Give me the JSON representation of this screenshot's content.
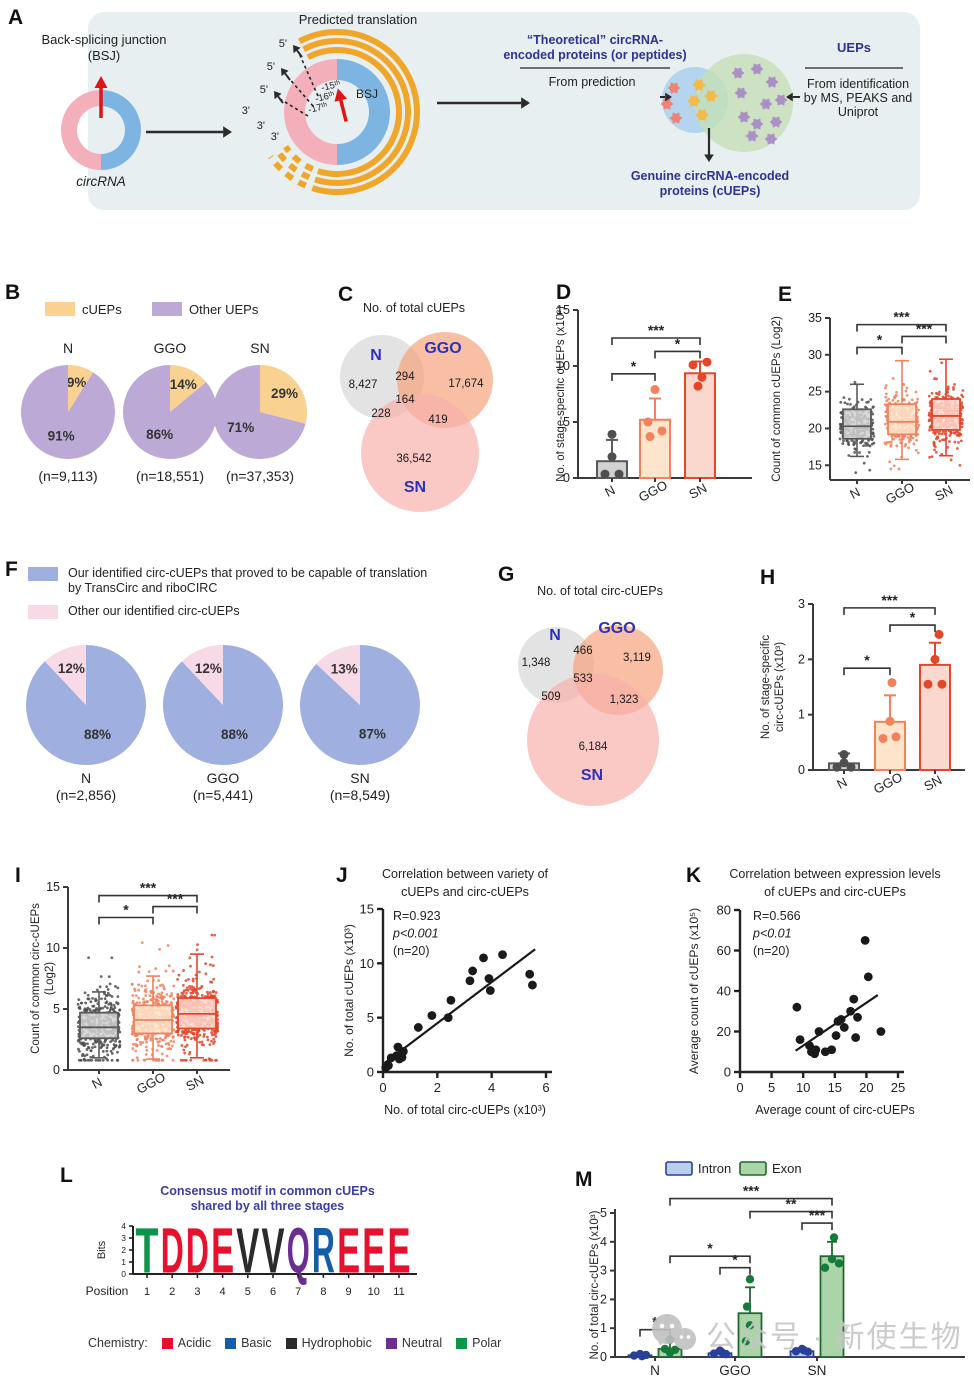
{
  "colors": {
    "stage_fill": [
      "#d2d2d2",
      "#fde4cb",
      "#fbd8cd"
    ],
    "stage_stroke": [
      "#595959",
      "#f2815c",
      "#e2472a"
    ],
    "stage_dot": [
      "#4f4f4f",
      "#f2815c",
      "#e2472a"
    ],
    "venn": [
      "#d6d6d6",
      "#f5a17b",
      "#f8b0ab"
    ],
    "blue_text": "#2d3293",
    "panelA_bg": "#e8eff1",
    "ring_pink": "#f3b0bb",
    "ring_blue": "#7eb4e2",
    "arc_orange": "#f0a62a",
    "venn_blue_circle": "#aed2ec",
    "venn_green_circle": "#c4deb6",
    "blob_red": "#ee8276",
    "blob_yellow": "#f2b94b",
    "blob_purple": "#ab90c6",
    "intron_fill": "#b9d0ec",
    "intron_stroke": "#2a3f97",
    "exon_fill": "#abd4a8",
    "exon_stroke": "#21672f",
    "exon_dot": "#157a3a"
  },
  "panelA": {
    "label": "A",
    "bsj_caption": [
      "Back-splicing junction",
      "(BSJ)"
    ],
    "circrna": "circRNA",
    "predicted": "Predicted translation",
    "five": "5'",
    "three": "3'",
    "orfs": [
      "-15ᵗʰ",
      "-16ᵗʰ",
      "-17ᵗʰ"
    ],
    "bsj": "BSJ",
    "theoretical": [
      "“Theoretical” circRNA-",
      "encoded  proteins (or peptides)"
    ],
    "from_prediction": "From prediction",
    "genuine": [
      "Genuine circRNA-encoded",
      "proteins (cUEPs)"
    ],
    "ueps": "UEPs",
    "from_identification": [
      "From identification",
      "by MS, PEAKS and",
      "Uniprot"
    ]
  },
  "panelB": {
    "label": "B"
  },
  "panelC": {
    "label": "C"
  },
  "panelD": {
    "label": "D"
  },
  "panelE": {
    "label": "E"
  },
  "panelF": {
    "label": "F",
    "legend1_line1": "Our identified circ-cUEPs that proved to be capable of translation",
    "legend1_line2": "by TransCirc and riboCIRC",
    "legend2": "Other our identified circ-cUEPs"
  },
  "panelG": {
    "label": "G"
  },
  "panelH": {
    "label": "H"
  },
  "panelI": {
    "label": "I"
  },
  "panelJ": {
    "label": "J"
  },
  "panelK": {
    "label": "K"
  },
  "panelL": {
    "label": "L",
    "title": [
      "Consensus motif in common cUEPs",
      "shared by all three stages"
    ],
    "bits": "Bits",
    "position": "Position",
    "chemistry_label": "Chemistry:"
  },
  "panelM": {
    "label": "M"
  },
  "watermark": {
    "text": "公众号 · 新使生物"
  },
  "chart_data": [
    {
      "panel": "B",
      "type": "pie",
      "legend": [
        "cUEPs",
        "Other UEPs"
      ],
      "slice_colors": [
        "#f9d292",
        "#bda9d6"
      ],
      "pies": [
        {
          "label": "N",
          "values": [
            9,
            91
          ],
          "value_labels": [
            "9%",
            "91%"
          ],
          "n": "(n=9,113)"
        },
        {
          "label": "GGO",
          "values": [
            14,
            86
          ],
          "value_labels": [
            "14%",
            "86%"
          ],
          "n": "(n=18,551)"
        },
        {
          "label": "SN",
          "values": [
            29,
            71
          ],
          "value_labels": [
            "29%",
            "71%"
          ],
          "n": "(n=37,353)"
        }
      ]
    },
    {
      "panel": "C",
      "type": "venn3",
      "title": "No. of total cUEPs",
      "sets": [
        {
          "name": "N",
          "count": "8,427"
        },
        {
          "name": "GGO",
          "count": "17,674"
        },
        {
          "name": "SN",
          "count": "36,542"
        }
      ],
      "overlaps": {
        "N_GGO": "294",
        "N_SN": "228",
        "GGO_SN": "419",
        "center": "164"
      }
    },
    {
      "panel": "D",
      "type": "bar",
      "ylabel": "No. of stage-specific cUEPs (x10³)",
      "ylim": [
        0,
        15
      ],
      "yticks": [
        0,
        5,
        10,
        15
      ],
      "categories": [
        "N",
        "GGO",
        "SN"
      ],
      "values": [
        1.5,
        5.2,
        9.35
      ],
      "err_top": [
        3.4,
        7.1,
        10.4
      ],
      "points": [
        [
          [
            0,
            3.9
          ],
          [
            0,
            1.9
          ],
          [
            -7,
            0.35
          ],
          [
            7,
            0.35
          ]
        ],
        [
          [
            0,
            7.9
          ],
          [
            -7,
            5.0
          ],
          [
            7,
            4.2
          ],
          [
            -5,
            3.7
          ]
        ],
        [
          [
            -7,
            10.1
          ],
          [
            7,
            10.35
          ],
          [
            2,
            9.0
          ],
          [
            -2,
            8.2
          ]
        ]
      ],
      "sig": [
        {
          "a": 0,
          "b": 1,
          "y": 9.3,
          "t": "*"
        },
        {
          "a": 1,
          "b": 2,
          "y": 11.3,
          "t": "*"
        },
        {
          "a": 0,
          "b": 2,
          "y": 12.5,
          "t": "***"
        }
      ]
    },
    {
      "panel": "E",
      "type": "box",
      "ylabel": "Count of common cUEPs (Log2)",
      "ylim": [
        13,
        35
      ],
      "yticks": [
        15,
        20,
        25,
        30,
        35
      ],
      "categories": [
        "N",
        "GGO",
        "SN"
      ],
      "boxes": [
        {
          "lo": 16.2,
          "q1": 18.6,
          "med": 20.3,
          "q3": 22.6,
          "hi": 26.0
        },
        {
          "lo": 15.8,
          "q1": 19.2,
          "med": 20.9,
          "q3": 23.3,
          "hi": 29.2
        },
        {
          "lo": 16.3,
          "q1": 19.8,
          "med": 21.7,
          "q3": 24.0,
          "hi": 29.4
        }
      ],
      "jitter": {
        "n": [
          230,
          280,
          320
        ],
        "seed": 11,
        "core_sd": 1.6,
        "tail_sd": 3.0,
        "clamp": [
          [
            14.0,
            27.6
          ],
          [
            14.5,
            30.3
          ],
          [
            15.0,
            30.6
          ]
        ]
      },
      "sig": [
        {
          "a": 0,
          "b": 1,
          "y": 31.0,
          "t": "*"
        },
        {
          "a": 1,
          "b": 2,
          "y": 32.5,
          "t": "***"
        },
        {
          "a": 0,
          "b": 2,
          "y": 34.1,
          "t": "***"
        }
      ]
    },
    {
      "panel": "F",
      "type": "pie",
      "legend": [
        "Our identified circ-cUEPs that proved to be capable of translation by TransCirc and riboCIRC",
        "Other our identified circ-cUEPs"
      ],
      "slice_colors": [
        "#9fb0e0",
        "#f8d9e6"
      ],
      "pies": [
        {
          "label": "N",
          "values": [
            88,
            12
          ],
          "value_labels": [
            "88%",
            "12%"
          ],
          "n": "(n=2,856)"
        },
        {
          "label": "GGO",
          "values": [
            88,
            12
          ],
          "value_labels": [
            "88%",
            "12%"
          ],
          "n": "(n=5,441)"
        },
        {
          "label": "SN",
          "values": [
            87,
            13
          ],
          "value_labels": [
            "87%",
            "13%"
          ],
          "n": "(n=8,549)"
        }
      ]
    },
    {
      "panel": "G",
      "type": "venn3",
      "title": "No. of total circ-cUEPs",
      "sets": [
        {
          "name": "N",
          "count": "1,348"
        },
        {
          "name": "GGO",
          "count": "3,119"
        },
        {
          "name": "SN",
          "count": "6,184"
        }
      ],
      "overlaps": {
        "N_GGO": "466",
        "N_SN": "509",
        "GGO_SN": "1,323",
        "center": "533"
      }
    },
    {
      "panel": "H",
      "type": "bar",
      "ylabel_lines": [
        "No. of stage-specific",
        "circ-cUEPs (x10³)"
      ],
      "ylim": [
        0,
        3
      ],
      "yticks": [
        0,
        1,
        2,
        3
      ],
      "categories": [
        "N",
        "GGO",
        "SN"
      ],
      "values": [
        0.12,
        0.87,
        1.9
      ],
      "err_top": [
        0.3,
        1.35,
        2.3
      ],
      "points": [
        [
          [
            0,
            0.28
          ],
          [
            0,
            0.13
          ],
          [
            -7,
            0.05
          ],
          [
            7,
            0.05
          ]
        ],
        [
          [
            2,
            1.58
          ],
          [
            0,
            0.88
          ],
          [
            -7,
            0.57
          ],
          [
            6,
            0.6
          ]
        ],
        [
          [
            4,
            2.45
          ],
          [
            0,
            2.0
          ],
          [
            -7,
            1.55
          ],
          [
            7,
            1.55
          ]
        ]
      ],
      "sig": [
        {
          "a": 0,
          "b": 1,
          "y": 1.84,
          "t": "*"
        },
        {
          "a": 1,
          "b": 2,
          "y": 2.62,
          "t": "*"
        },
        {
          "a": 0,
          "b": 2,
          "y": 2.93,
          "t": "***"
        }
      ]
    },
    {
      "panel": "I",
      "type": "box",
      "ylabel_lines": [
        "Count of common circ-cUEPs",
        "(Log2)"
      ],
      "ylim": [
        0,
        15
      ],
      "yticks": [
        0,
        5,
        10,
        15
      ],
      "categories": [
        "N",
        "GGO",
        "SN"
      ],
      "boxes": [
        {
          "lo": 1.0,
          "q1": 2.6,
          "med": 3.5,
          "q3": 4.7,
          "hi": 6.4
        },
        {
          "lo": 0.9,
          "q1": 3.0,
          "med": 4.1,
          "q3": 5.3,
          "hi": 7.7
        },
        {
          "lo": 1.0,
          "q1": 3.4,
          "med": 4.6,
          "q3": 5.9,
          "hi": 9.5
        }
      ],
      "jitter": {
        "n": [
          380,
          430,
          470
        ],
        "seed": 23,
        "core_sd": 1.25,
        "tail_sd": 2.6,
        "clamp": [
          [
            0.8,
            9.2
          ],
          [
            0.8,
            10.5
          ],
          [
            0.8,
            11.3
          ]
        ]
      },
      "sig": [
        {
          "a": 0,
          "b": 1,
          "y": 12.5,
          "t": "*"
        },
        {
          "a": 1,
          "b": 2,
          "y": 13.4,
          "t": "***"
        },
        {
          "a": 0,
          "b": 2,
          "y": 14.3,
          "t": "***"
        }
      ]
    },
    {
      "panel": "J",
      "type": "scatter",
      "title_lines": [
        "Correlation between variety of",
        "cUEPs and circ-cUEPs"
      ],
      "stats": [
        "R=0.923",
        "p<0.001",
        "(n=20)"
      ],
      "xlabel": "No. of total circ-cUEPs (x10³)",
      "ylabel": "No. of total cUEPs (x10³)",
      "xlim": [
        0,
        6
      ],
      "xticks": [
        0,
        2,
        4,
        6
      ],
      "ylim": [
        0,
        15
      ],
      "yticks": [
        0,
        5,
        10,
        15
      ],
      "points": [
        [
          0.1,
          0.4
        ],
        [
          0.2,
          0.6
        ],
        [
          0.3,
          1.3
        ],
        [
          0.5,
          1.5
        ],
        [
          0.55,
          2.3
        ],
        [
          0.6,
          1.2
        ],
        [
          0.7,
          1.35
        ],
        [
          0.75,
          1.9
        ],
        [
          1.3,
          4.1
        ],
        [
          1.8,
          5.2
        ],
        [
          2.4,
          5.0
        ],
        [
          2.5,
          6.6
        ],
        [
          3.2,
          8.4
        ],
        [
          3.3,
          9.3
        ],
        [
          3.7,
          10.5
        ],
        [
          3.9,
          8.6
        ],
        [
          3.95,
          7.5
        ],
        [
          4.4,
          10.8
        ],
        [
          5.4,
          9.0
        ],
        [
          5.5,
          8.0
        ]
      ],
      "trend": [
        [
          0.05,
          0.8
        ],
        [
          5.6,
          11.3
        ]
      ]
    },
    {
      "panel": "K",
      "type": "scatter",
      "title_lines": [
        "Correlation between expression levels",
        "of cUEPs and circ-cUEPs"
      ],
      "stats": [
        "R=0.566",
        "p<0.01",
        "(n=20)"
      ],
      "xlabel": "Average count of circ-cUEPs",
      "ylabel": "Average count of cUEPs (x10⁵)",
      "xlim": [
        0,
        25
      ],
      "xticks": [
        0,
        5,
        10,
        15,
        20,
        25
      ],
      "ylim": [
        0,
        80
      ],
      "yticks": [
        0,
        20,
        40,
        60,
        80
      ],
      "points": [
        [
          9,
          32
        ],
        [
          9.5,
          16
        ],
        [
          11,
          13
        ],
        [
          11.3,
          10
        ],
        [
          11.8,
          9
        ],
        [
          12,
          11
        ],
        [
          12.5,
          20
        ],
        [
          13.5,
          10
        ],
        [
          14.5,
          11
        ],
        [
          15.2,
          18
        ],
        [
          15.5,
          25
        ],
        [
          16,
          26
        ],
        [
          16.5,
          22
        ],
        [
          17.5,
          30
        ],
        [
          18,
          36
        ],
        [
          18.3,
          17
        ],
        [
          18.6,
          27
        ],
        [
          19.8,
          65
        ],
        [
          20.3,
          47
        ],
        [
          22.3,
          20
        ]
      ],
      "trend": [
        [
          8.8,
          10.5
        ],
        [
          21.8,
          38
        ]
      ]
    },
    {
      "panel": "L",
      "type": "logo",
      "letters": [
        {
          "ch": "T",
          "color": "#0c9448"
        },
        {
          "ch": "D",
          "color": "#e8112d"
        },
        {
          "ch": "D",
          "color": "#e8112d"
        },
        {
          "ch": "E",
          "color": "#e8112d"
        },
        {
          "ch": "V",
          "color": "#2b2b2b"
        },
        {
          "ch": "V",
          "color": "#2b2b2b"
        },
        {
          "ch": "Q",
          "color": "#6b2d90"
        },
        {
          "ch": "R",
          "color": "#145da8"
        },
        {
          "ch": "E",
          "color": "#e8112d"
        },
        {
          "ch": "E",
          "color": "#e8112d"
        },
        {
          "ch": "E",
          "color": "#e8112d"
        }
      ],
      "positions": [
        "1",
        "2",
        "3",
        "4",
        "5",
        "6",
        "7",
        "8",
        "9",
        "10",
        "11"
      ],
      "bits_ticks": [
        "0",
        "1",
        "2",
        "3",
        "4"
      ],
      "chemistry": [
        {
          "name": "Acidic",
          "color": "#e8112d"
        },
        {
          "name": "Basic",
          "color": "#145da8"
        },
        {
          "name": "Hydrophobic",
          "color": "#2b2b2b"
        },
        {
          "name": "Neutral",
          "color": "#6b2d90"
        },
        {
          "name": "Polar",
          "color": "#0c9448"
        }
      ]
    },
    {
      "panel": "M",
      "type": "grouped_bar",
      "legend": [
        "Intron",
        "Exon"
      ],
      "ylabel": "No. of total circ-cUEPs (x10³)",
      "ylim": [
        0,
        5
      ],
      "yticks": [
        0,
        1,
        2,
        3,
        4,
        5
      ],
      "categories": [
        "N",
        "GGO",
        "SN"
      ],
      "series": [
        {
          "name": "Intron",
          "values": [
            0.06,
            0.13,
            0.2
          ],
          "err_top": [
            0.1,
            0.22,
            0.3
          ],
          "points": [
            [
              [
                -6,
                0.05
              ],
              [
                0,
                0.1
              ],
              [
                6,
                0.07
              ],
              [
                2,
                0.03
              ]
            ],
            [
              [
                -6,
                0.12
              ],
              [
                0,
                0.22
              ],
              [
                6,
                0.1
              ],
              [
                2,
                0.16
              ]
            ],
            [
              [
                -6,
                0.2
              ],
              [
                0,
                0.28
              ],
              [
                6,
                0.18
              ],
              [
                2,
                0.23
              ]
            ]
          ]
        },
        {
          "name": "Exon",
          "values": [
            0.28,
            1.52,
            3.5
          ],
          "err_top": [
            0.62,
            2.42,
            4.0
          ],
          "points": [
            [
              [
                0,
                0.6
              ],
              [
                -5,
                0.28
              ],
              [
                5,
                0.25
              ],
              [
                0,
                0.15
              ]
            ],
            [
              [
                0,
                2.7
              ],
              [
                -3,
                1.75
              ],
              [
                0,
                1.1
              ],
              [
                -4,
                0.55
              ]
            ],
            [
              [
                2,
                4.15
              ],
              [
                -7,
                3.1
              ],
              [
                0,
                3.4
              ],
              [
                7,
                3.25
              ]
            ]
          ]
        }
      ],
      "sig": [
        {
          "a": [
            0,
            0
          ],
          "b": [
            0,
            1
          ],
          "y": 0.95,
          "t": "*"
        },
        {
          "a": [
            1,
            0
          ],
          "b": [
            1,
            1
          ],
          "y": 3.1,
          "t": "*"
        },
        {
          "a": [
            0,
            1
          ],
          "b": [
            1,
            1
          ],
          "y": 3.5,
          "t": "*"
        },
        {
          "a": [
            2,
            0
          ],
          "b": [
            2,
            1
          ],
          "y": 4.65,
          "t": "***"
        },
        {
          "a": [
            1,
            1
          ],
          "b": [
            2,
            1
          ],
          "y": 5.05,
          "t": "**"
        },
        {
          "a": [
            0,
            1
          ],
          "b": [
            2,
            1
          ],
          "y": 5.5,
          "t": "***"
        }
      ]
    }
  ]
}
